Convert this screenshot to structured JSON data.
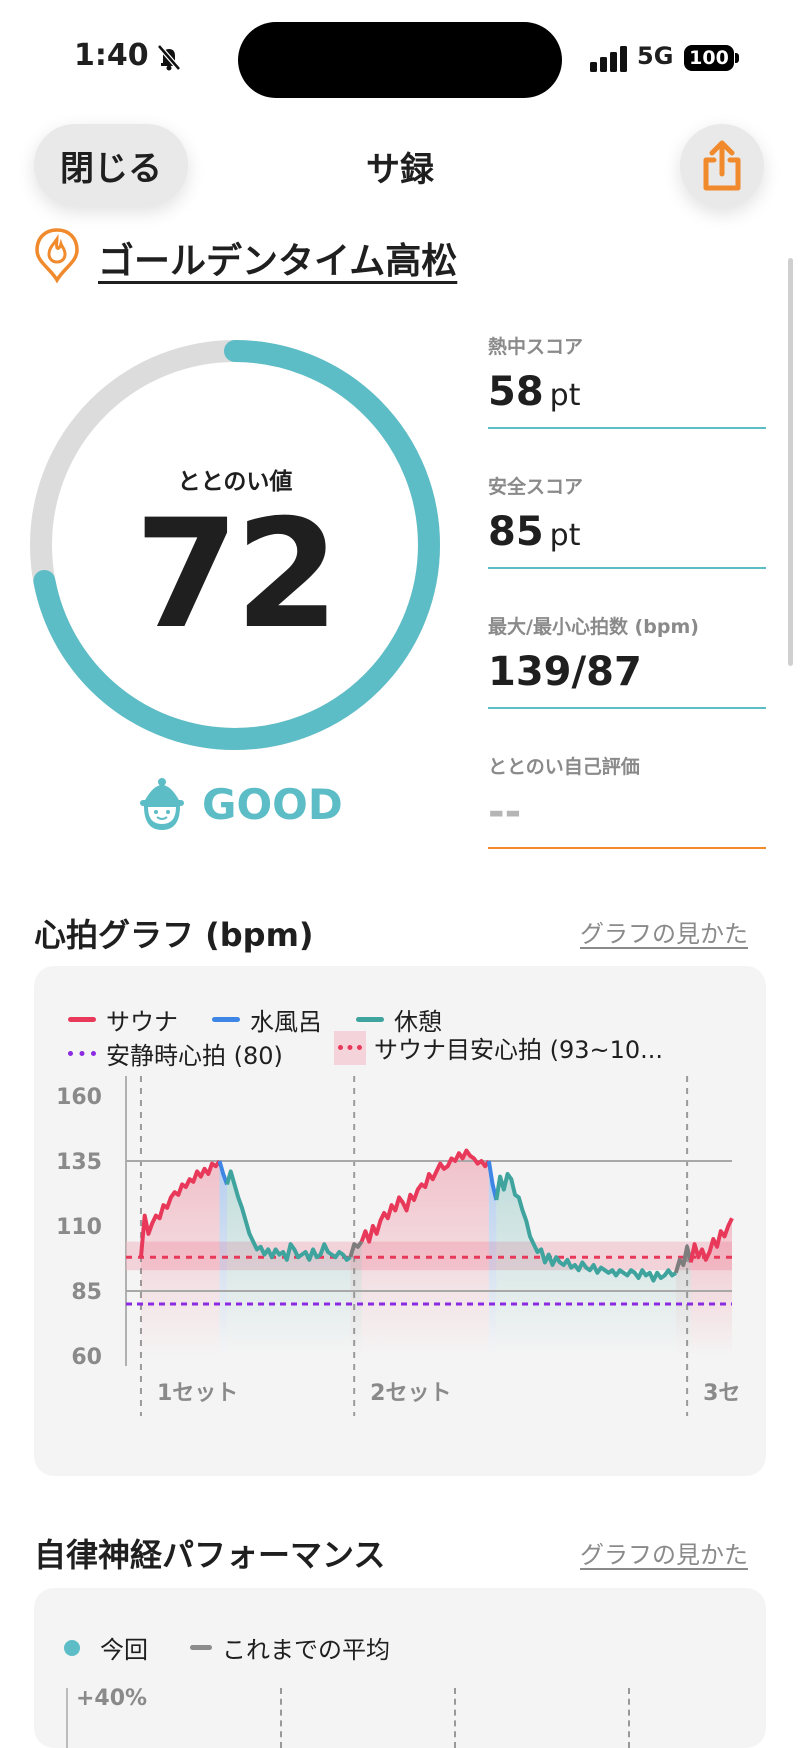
{
  "status_bar": {
    "time": "1:40",
    "network": "5G",
    "battery": "100"
  },
  "header": {
    "close_label": "閉じる",
    "title": "サ録"
  },
  "facility": {
    "name": "ゴールデンタイム高松"
  },
  "score": {
    "label": "ととのい値",
    "value": "72",
    "progress": 0.72,
    "rating": "GOOD"
  },
  "stats": [
    {
      "label": "熱中スコア",
      "value": "58",
      "unit": "pt"
    },
    {
      "label": "安全スコア",
      "value": "85",
      "unit": "pt"
    },
    {
      "label": "最大/最小心拍数 (bpm)",
      "value": "139/87",
      "unit": ""
    },
    {
      "label": "ととのい自己評価",
      "value": "--",
      "unit": ""
    }
  ],
  "heart_section": {
    "title": "心拍グラフ (bpm)",
    "howto": "グラフの見かた"
  },
  "legend": {
    "sauna": "サウナ",
    "cold": "水風呂",
    "rest": "休憩",
    "resting_hr": "安静時心拍 (80)",
    "sauna_target": "サウナ目安心拍 (93~10..."
  },
  "colors": {
    "sauna": "#e8395a",
    "cold": "#3d86e6",
    "rest": "#3fa39e",
    "resting": "#8a2be2",
    "accent": "#5cbdc6",
    "orange": "#f08a2c"
  },
  "chart_data": {
    "type": "line",
    "ylim": [
      60,
      160
    ],
    "yticks": [
      "160",
      "135",
      "110",
      "85",
      "60"
    ],
    "set_labels": [
      "1セット",
      "2セット",
      "3セ"
    ],
    "reference_lines": {
      "resting_hr": 80,
      "max_hr": 135,
      "min_line": 85
    },
    "target_band": [
      93,
      104
    ],
    "target_center": 98,
    "series": [
      {
        "name": "サウナ",
        "phase": "sauna",
        "x": [
          0,
          1,
          2,
          3,
          4,
          5,
          6,
          7,
          8,
          9,
          10,
          11,
          12,
          13,
          14,
          15,
          16,
          17,
          18,
          19,
          20,
          21
        ],
        "y": [
          98,
          114,
          107,
          111,
          114,
          113,
          118,
          117,
          121,
          123,
          122,
          126,
          125,
          128,
          127,
          131,
          129,
          132,
          130,
          134,
          133,
          135
        ]
      },
      {
        "name": "水風呂",
        "phase": "cold",
        "x": [
          21,
          22,
          23
        ],
        "y": [
          135,
          130,
          126
        ]
      },
      {
        "name": "休憩",
        "phase": "rest",
        "x": [
          23,
          24,
          25,
          26,
          27,
          28,
          29,
          30,
          31,
          32,
          33,
          34,
          35,
          36,
          37,
          38,
          39,
          40,
          41,
          42,
          43,
          44,
          45,
          46,
          47,
          48,
          49,
          50,
          51,
          52,
          53,
          54,
          55,
          56
        ],
        "y": [
          126,
          131,
          126,
          121,
          117,
          112,
          107,
          104,
          101,
          102,
          99,
          101,
          98,
          101,
          99,
          100,
          97,
          103,
          101,
          98,
          99,
          100,
          97,
          101,
          98,
          99,
          103,
          100,
          99,
          98,
          100,
          99,
          97,
          98
        ]
      },
      {
        "name": "",
        "phase": "transition",
        "x": [
          56,
          57,
          58,
          59
        ],
        "y": [
          98,
          103,
          102,
          104
        ]
      },
      {
        "name": "サウナ",
        "phase": "sauna",
        "x": [
          59,
          60,
          61,
          62,
          63,
          64,
          65,
          66,
          67,
          68,
          69,
          70,
          71,
          72,
          73,
          74,
          75,
          76,
          77,
          78,
          79,
          80,
          81,
          82,
          83,
          84,
          85,
          86,
          87,
          88,
          89,
          90,
          91,
          92,
          93
        ],
        "y": [
          104,
          108,
          104,
          110,
          107,
          112,
          115,
          113,
          118,
          116,
          121,
          119,
          116,
          122,
          120,
          124,
          126,
          125,
          130,
          128,
          131,
          134,
          132,
          133,
          136,
          135,
          138,
          136,
          139,
          137,
          136,
          134,
          135,
          133,
          135
        ]
      },
      {
        "name": "水風呂",
        "phase": "cold",
        "x": [
          93,
          94,
          95
        ],
        "y": [
          135,
          126,
          120
        ]
      },
      {
        "name": "休憩",
        "phase": "rest",
        "x": [
          95,
          96,
          97,
          98,
          99,
          100,
          101,
          102,
          103,
          104,
          105,
          106,
          107,
          108,
          109,
          110,
          111,
          112,
          113,
          114,
          115,
          116,
          117,
          118,
          119,
          120,
          121,
          122,
          123,
          124,
          125,
          126,
          127,
          128,
          129,
          130,
          131,
          132,
          133,
          134,
          135,
          136,
          137,
          138,
          139,
          140,
          141,
          142,
          143
        ],
        "y": [
          120,
          129,
          124,
          130,
          128,
          122,
          121,
          116,
          112,
          106,
          103,
          100,
          101,
          96,
          99,
          95,
          98,
          96,
          95,
          97,
          94,
          95,
          93,
          96,
          94,
          93,
          95,
          92,
          94,
          93,
          92,
          93,
          91,
          93,
          92,
          91,
          93,
          92,
          90,
          93,
          91,
          92,
          89,
          92,
          90,
          91,
          93,
          91,
          92
        ]
      },
      {
        "name": "",
        "phase": "transition",
        "x": [
          143,
          144,
          145,
          146,
          147
        ],
        "y": [
          92,
          97,
          95,
          102,
          96
        ]
      },
      {
        "name": "サウナ",
        "phase": "sauna",
        "x": [
          147,
          148,
          149,
          150,
          151,
          152,
          153,
          154,
          155,
          156,
          157,
          158
        ],
        "y": [
          96,
          103,
          98,
          101,
          97,
          100,
          105,
          102,
          108,
          106,
          110,
          113
        ]
      }
    ],
    "set_boundaries": [
      0,
      57,
      146
    ],
    "x_range": [
      -4,
      158
    ]
  },
  "ans_section": {
    "title": "自律神経パフォーマンス",
    "howto": "グラフの見かた"
  },
  "ans_legend": {
    "current": "今回",
    "average": "これまでの平均"
  },
  "ans_chart_data": {
    "type": "bar",
    "ytick_top": "+40%"
  }
}
